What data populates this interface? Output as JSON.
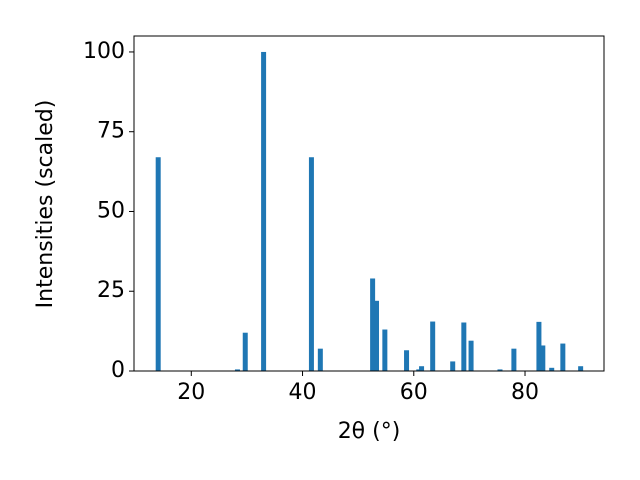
{
  "chart_data": {
    "type": "bar",
    "x_label": "2θ (°)",
    "y_label": "Intensities (scaled)",
    "x": [
      14.05,
      28.3,
      29.7,
      33.0,
      41.6,
      43.2,
      52.6,
      53.3,
      54.8,
      58.7,
      60.9,
      61.4,
      63.4,
      67.0,
      69.0,
      70.3,
      75.5,
      78.0,
      82.5,
      83.2,
      84.8,
      86.8,
      90.0
    ],
    "values": [
      67,
      0.5,
      12,
      100,
      67,
      7,
      29,
      22,
      13,
      6.5,
      0.5,
      1.5,
      15.5,
      3,
      15.2,
      9.5,
      0.5,
      7,
      15.4,
      8,
      1,
      8.6,
      1.5
    ],
    "color": "#1f77b4",
    "xlim": [
      9.7,
      94.2
    ],
    "ylim": [
      0,
      105
    ],
    "xticks": [
      20,
      40,
      60,
      80
    ],
    "yticks": [
      0,
      25,
      50,
      75,
      100
    ]
  }
}
